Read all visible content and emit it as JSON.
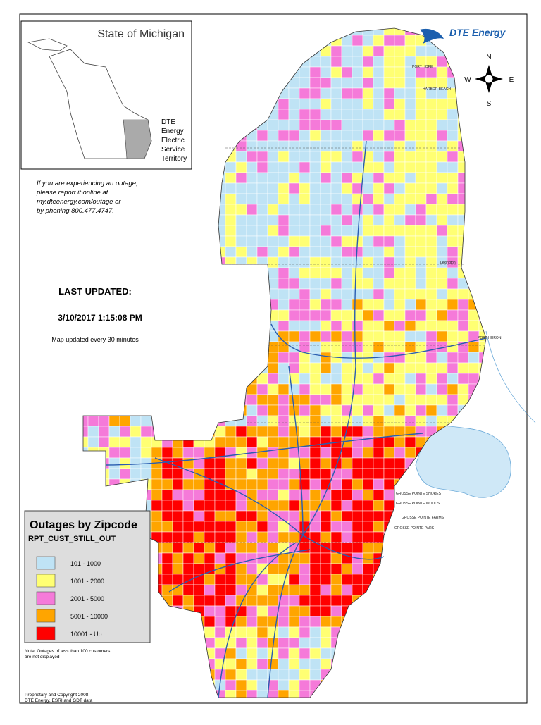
{
  "header": {
    "brand": "DTE Energy"
  },
  "inset": {
    "title": "State of Michigan",
    "territory_label": [
      "DTE",
      "Energy",
      "Electric",
      "Service",
      "Territory"
    ]
  },
  "compass": {
    "n": "N",
    "s": "S",
    "e": "E",
    "w": "W"
  },
  "notice": [
    "If you are experiencing an outage,",
    "please report it online at",
    "my.dteenergy.com/outage or",
    "by phoning 800.477.4747."
  ],
  "update": {
    "label": "LAST UPDATED:",
    "timestamp": "3/10/2017 1:15:08 PM",
    "frequency": "Map updated every 30 minutes"
  },
  "legend": {
    "title": "Outages by Zipcode",
    "field": "RPT_CUST_STILL_OUT",
    "items": [
      {
        "label": "101 - 1000",
        "color": "#bfe3f5"
      },
      {
        "label": "1001 - 2000",
        "color": "#ffff73"
      },
      {
        "label": "2001 - 5000",
        "color": "#f57ad9"
      },
      {
        "label": "5001 - 10000",
        "color": "#ffa500"
      },
      {
        "label": "10001 - Up",
        "color": "#ff0000"
      }
    ]
  },
  "note": [
    "Note:  Outages of less than 100 customers",
    "are not displayed"
  ],
  "copyright": [
    "Proprietary and Copyright 2008:",
    "DTE Energy, ESRI and GDT data"
  ],
  "place_labels": [
    "PORT HOPE",
    "HARBOR BEACH",
    "Lexington",
    "PORT HURON",
    "GROSSE POINTE SHORES",
    "GROSSE POINTE WOODS",
    "GROSSE POINTE FARMS",
    "GROSSE POINTE PARK"
  ]
}
